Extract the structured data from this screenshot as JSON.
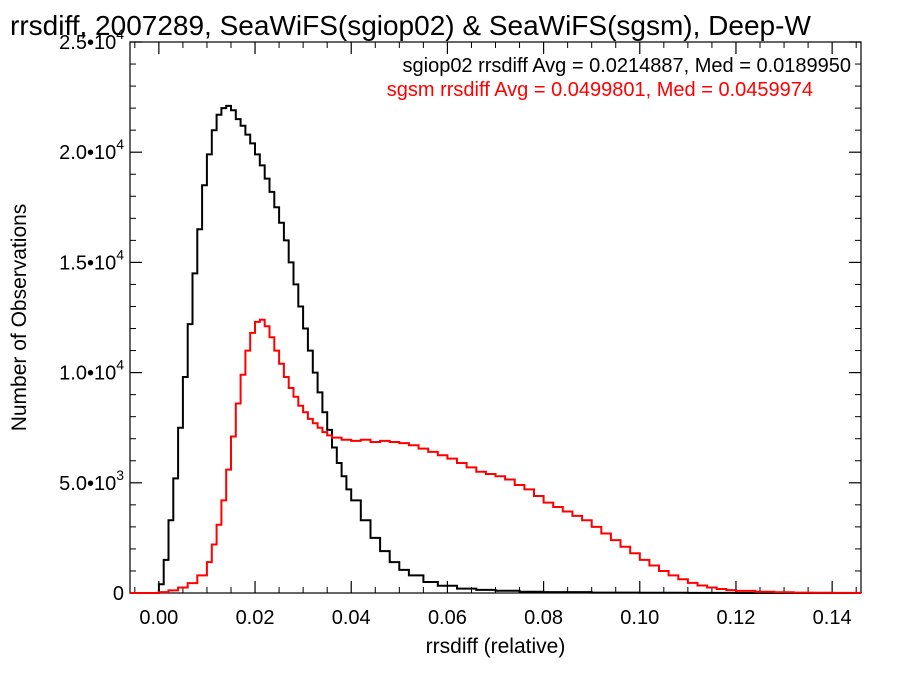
{
  "chart_data": {
    "type": "line",
    "title": "rrsdiff, 2007289, SeaWiFS(sgiop02) & SeaWiFS(sgsm), Deep-W",
    "xlabel": "rrsdiff (relative)",
    "ylabel": "Number of Observations",
    "xlim": [
      -0.006,
      0.146
    ],
    "ylim": [
      0,
      25000
    ],
    "x_ticks": [
      0.0,
      0.02,
      0.04,
      0.06,
      0.08,
      0.1,
      0.12,
      0.14
    ],
    "x_tick_labels": [
      "0.00",
      "0.02",
      "0.04",
      "0.06",
      "0.08",
      "0.10",
      "0.12",
      "0.14"
    ],
    "y_ticks": [
      0,
      5000,
      10000,
      15000,
      20000,
      25000
    ],
    "y_tick_labels": [
      {
        "mantissa": "0",
        "exp": ""
      },
      {
        "mantissa": "5.0•10",
        "exp": "3"
      },
      {
        "mantissa": "1.0•10",
        "exp": "4"
      },
      {
        "mantissa": "1.5•10",
        "exp": "4"
      },
      {
        "mantissa": "2.0•10",
        "exp": "4"
      },
      {
        "mantissa": "2.5•10",
        "exp": "4"
      }
    ],
    "grid": false,
    "legend": [
      {
        "text": "sgiop02 rrsdiff Avg = 0.0214887, Med = 0.0189950",
        "color": "#000000"
      },
      {
        "text": "sgsm rrsdiff Avg = 0.0499801, Med = 0.0459974",
        "color": "#ff0000"
      }
    ],
    "series": [
      {
        "name": "sgiop02",
        "color": "#000000",
        "x": [
          -0.006,
          -0.001,
          0.0,
          0.001,
          0.002,
          0.003,
          0.004,
          0.005,
          0.006,
          0.007,
          0.008,
          0.009,
          0.01,
          0.011,
          0.012,
          0.013,
          0.014,
          0.015,
          0.016,
          0.017,
          0.018,
          0.019,
          0.02,
          0.021,
          0.022,
          0.023,
          0.024,
          0.025,
          0.026,
          0.027,
          0.028,
          0.029,
          0.03,
          0.031,
          0.032,
          0.033,
          0.034,
          0.035,
          0.036,
          0.037,
          0.038,
          0.039,
          0.04,
          0.042,
          0.044,
          0.046,
          0.048,
          0.05,
          0.052,
          0.055,
          0.058,
          0.062,
          0.066,
          0.07,
          0.075,
          0.08,
          0.09,
          0.1,
          0.11,
          0.12,
          0.13,
          0.14,
          0.146
        ],
        "y": [
          0,
          0,
          400,
          1500,
          3300,
          5200,
          7500,
          9800,
          12200,
          14500,
          16500,
          18500,
          19900,
          21000,
          21700,
          22000,
          22100,
          21900,
          21500,
          21200,
          20800,
          20400,
          19900,
          19400,
          18800,
          18200,
          17500,
          16800,
          16000,
          15000,
          14000,
          13000,
          12000,
          11000,
          10000,
          9100,
          8200,
          7400,
          6600,
          5900,
          5300,
          4700,
          4200,
          3300,
          2500,
          1900,
          1400,
          1050,
          800,
          500,
          330,
          200,
          140,
          100,
          60,
          40,
          20,
          10,
          5,
          2,
          0,
          0,
          0
        ]
      },
      {
        "name": "sgsm",
        "color": "#ff0000",
        "x": [
          -0.006,
          -0.001,
          0.0,
          0.002,
          0.004,
          0.006,
          0.008,
          0.01,
          0.011,
          0.012,
          0.013,
          0.014,
          0.015,
          0.016,
          0.017,
          0.018,
          0.019,
          0.02,
          0.021,
          0.022,
          0.023,
          0.024,
          0.025,
          0.026,
          0.027,
          0.028,
          0.029,
          0.03,
          0.031,
          0.032,
          0.033,
          0.034,
          0.035,
          0.036,
          0.038,
          0.04,
          0.042,
          0.044,
          0.046,
          0.048,
          0.05,
          0.052,
          0.054,
          0.056,
          0.058,
          0.06,
          0.062,
          0.064,
          0.066,
          0.068,
          0.07,
          0.072,
          0.074,
          0.076,
          0.078,
          0.08,
          0.082,
          0.084,
          0.086,
          0.088,
          0.09,
          0.092,
          0.094,
          0.096,
          0.098,
          0.1,
          0.102,
          0.104,
          0.106,
          0.108,
          0.11,
          0.112,
          0.114,
          0.116,
          0.118,
          0.12,
          0.124,
          0.128,
          0.132,
          0.136,
          0.14,
          0.146
        ],
        "y": [
          0,
          0,
          40,
          120,
          250,
          450,
          800,
          1400,
          2200,
          3100,
          4200,
          5600,
          7100,
          8600,
          9900,
          11000,
          11800,
          12300,
          12400,
          12100,
          11600,
          11000,
          10400,
          9800,
          9300,
          8900,
          8500,
          8200,
          7900,
          7700,
          7500,
          7300,
          7150,
          7050,
          6950,
          6900,
          6950,
          6850,
          6900,
          6850,
          6800,
          6700,
          6550,
          6400,
          6250,
          6100,
          5900,
          5700,
          5500,
          5400,
          5300,
          5150,
          4900,
          4700,
          4400,
          4100,
          3900,
          3700,
          3500,
          3300,
          3000,
          2700,
          2400,
          2100,
          1800,
          1500,
          1250,
          1000,
          800,
          620,
          460,
          340,
          250,
          180,
          130,
          95,
          60,
          35,
          18,
          8,
          3,
          0
        ]
      }
    ]
  }
}
